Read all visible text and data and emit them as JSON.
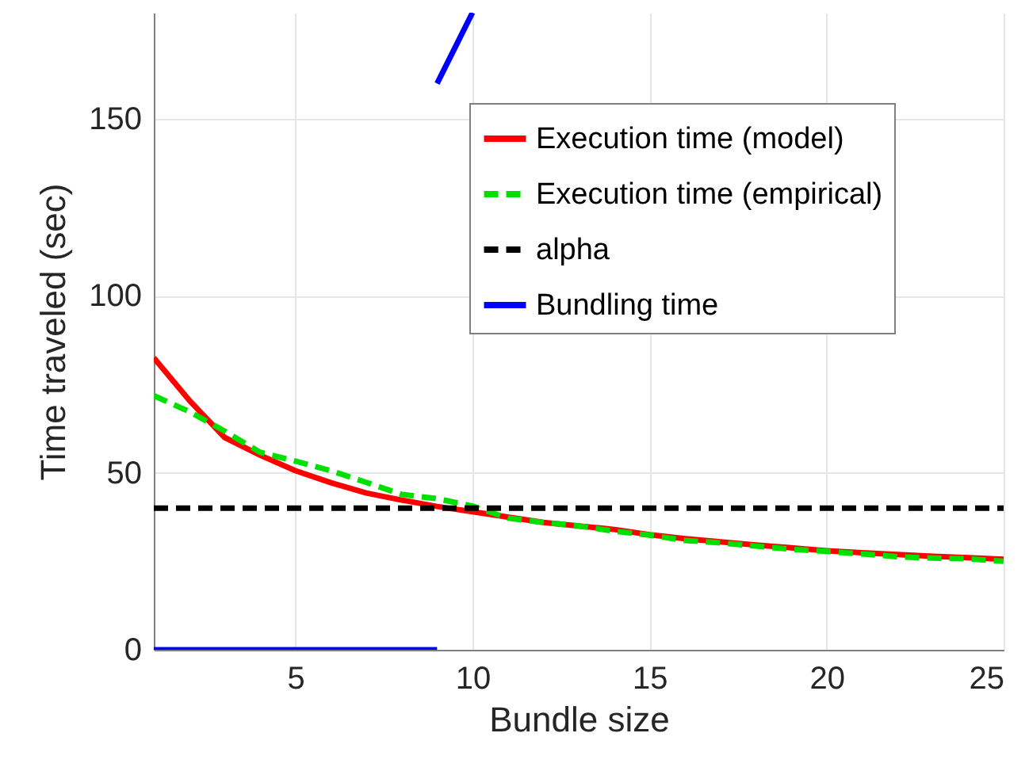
{
  "chart_data": {
    "type": "line",
    "xlabel": "Bundle size",
    "ylabel": "Time traveled (sec)",
    "xlim": [
      1,
      25
    ],
    "ylim": [
      0,
      180
    ],
    "xticks": [
      5,
      10,
      15,
      20,
      25
    ],
    "yticks": [
      0,
      50,
      100,
      150
    ],
    "grid": true,
    "legend": "top right",
    "series": [
      {
        "name": "Execution time (model)",
        "color": "#ff0000",
        "line_style": "solid",
        "x": [
          1,
          2,
          3,
          4,
          5,
          6,
          7,
          8,
          9,
          10,
          11,
          12,
          13,
          14,
          15,
          16,
          17,
          18,
          19,
          20,
          21,
          22,
          23,
          24,
          25
        ],
        "values": [
          82.5,
          70.5,
          60,
          55,
          50.6,
          47.2,
          44.3,
          42.3,
          40.5,
          39,
          37.5,
          36,
          35,
          34,
          32.5,
          31.4,
          30.5,
          29.6,
          28.8,
          28,
          27.4,
          26.9,
          26.4,
          26,
          25.6
        ]
      },
      {
        "name": "Execution time (empirical)",
        "color": "#00e000",
        "line_style": "dashed",
        "x": [
          1,
          2,
          3,
          4,
          5,
          6,
          7,
          8,
          9,
          10,
          11,
          12,
          13,
          14,
          15,
          16,
          17,
          18,
          19,
          20,
          21,
          22,
          23,
          24,
          25
        ],
        "values": [
          71.8,
          67.3,
          61.8,
          55.8,
          53.3,
          50.6,
          47.3,
          43.9,
          42.7,
          40.6,
          37.2,
          36,
          35,
          33.5,
          32.4,
          30.9,
          30.2,
          29.3,
          28.4,
          27.8,
          27.1,
          26.3,
          25.9,
          25.7,
          25
        ]
      },
      {
        "name": "alpha",
        "color": "#000000",
        "line_style": "dashed",
        "x": [
          1,
          25
        ],
        "values": [
          40,
          40
        ]
      },
      {
        "name": "Bundling time",
        "color": "#0000ff",
        "line_style": "solid",
        "x": [
          1,
          2,
          3,
          4,
          5,
          6,
          7,
          8,
          9,
          null,
          9,
          10
        ],
        "values": [
          0,
          0,
          0,
          0,
          0,
          0,
          0,
          0,
          0,
          null,
          160,
          180
        ]
      }
    ]
  }
}
